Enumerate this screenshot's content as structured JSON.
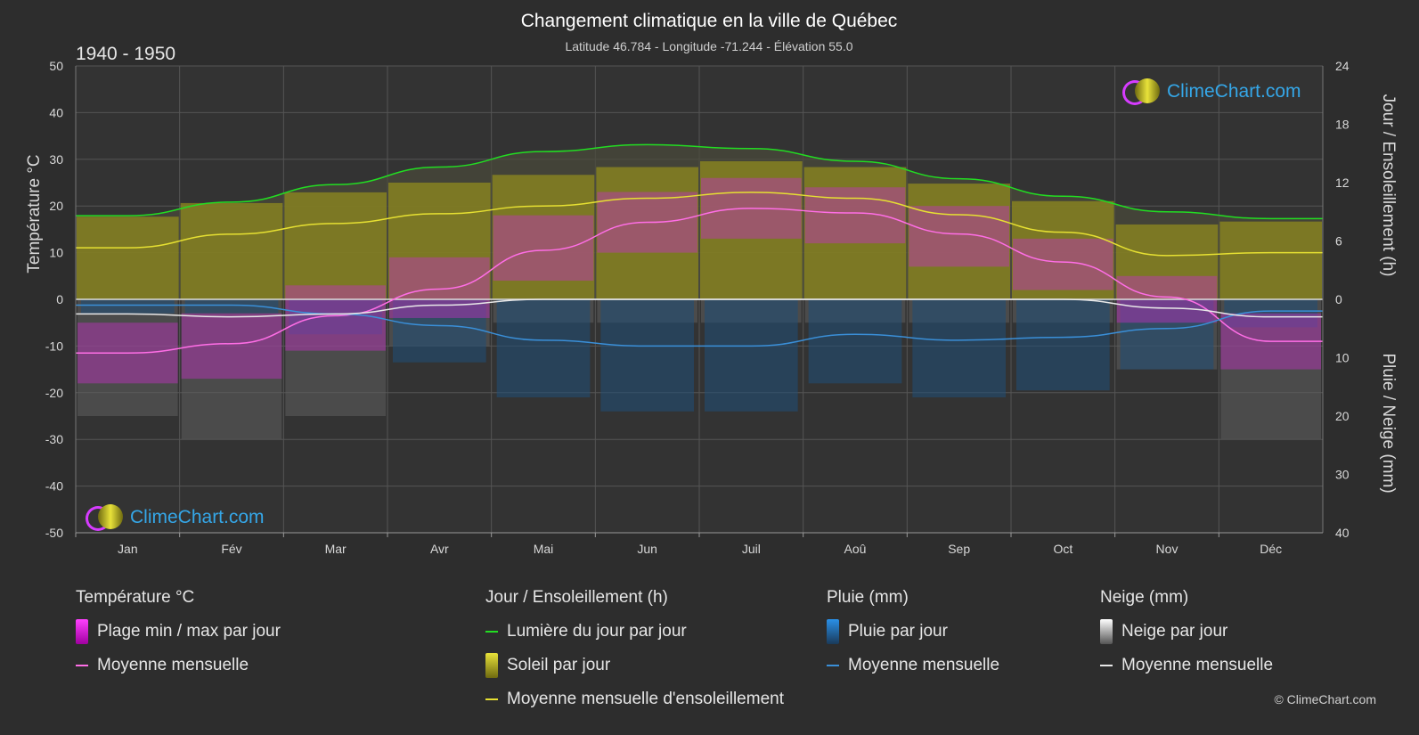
{
  "chart_data": {
    "type": "area",
    "title": "Changement climatique en la ville de Québec",
    "subtitle": "Latitude 46.784 - Longitude -71.244 - Élévation 55.0",
    "period": "1940 - 1950",
    "months": [
      "Jan",
      "Fév",
      "Mar",
      "Avr",
      "Mai",
      "Jun",
      "Juil",
      "Aoû",
      "Sep",
      "Oct",
      "Nov",
      "Déc"
    ],
    "y_left": {
      "label": "Température °C",
      "range": [
        -50,
        50
      ],
      "ticks": [
        50,
        40,
        30,
        20,
        10,
        0,
        -10,
        -20,
        -30,
        -40,
        -50
      ]
    },
    "y_right_top": {
      "label": "Jour / Ensoleillement (h)",
      "range": [
        0,
        24
      ],
      "ticks": [
        24,
        18,
        12,
        6,
        0
      ]
    },
    "y_right_bottom": {
      "label": "Pluie / Neige (mm)",
      "range": [
        0,
        40
      ],
      "ticks": [
        10,
        20,
        30,
        40
      ]
    },
    "grid": true,
    "series": [
      {
        "name": "Lumière du jour par jour",
        "unit": "h",
        "color": "#22dd22",
        "values": [
          8.6,
          10.0,
          11.8,
          13.6,
          15.2,
          15.9,
          15.5,
          14.2,
          12.4,
          10.6,
          9.0,
          8.3
        ]
      },
      {
        "name": "Moyenne mensuelle d'ensoleillement",
        "unit": "h",
        "color": "#e6e032",
        "values": [
          5.3,
          6.7,
          7.8,
          8.8,
          9.6,
          10.4,
          11.0,
          10.4,
          8.7,
          6.9,
          4.5,
          4.8
        ]
      },
      {
        "name": "Moyenne mensuelle",
        "group": "Température °C",
        "unit": "°C",
        "color": "#ff6ee6",
        "values": [
          -11.5,
          -9.5,
          -3.5,
          2.2,
          10.5,
          16.5,
          19.5,
          18.5,
          14.0,
          8.0,
          0.5,
          -9.0
        ]
      },
      {
        "name": "Moyenne mensuelle",
        "group": "Pluie (mm)",
        "unit": "mm",
        "color": "#3a8fd8",
        "values": [
          1.0,
          1.0,
          2.5,
          4.5,
          7.0,
          8.0,
          8.0,
          6.0,
          7.0,
          6.5,
          5.0,
          2.0
        ]
      },
      {
        "name": "Moyenne mensuelle",
        "group": "Neige (mm)",
        "unit": "mm",
        "color": "#e8e8e8",
        "values": [
          2.5,
          3.0,
          2.5,
          1.0,
          0.0,
          0.0,
          0.0,
          0.0,
          0.0,
          0.0,
          1.5,
          3.0
        ]
      },
      {
        "name": "Plage min / max par jour",
        "unit": "°C",
        "color": "#e020e0",
        "min": [
          -18,
          -17,
          -11,
          -4,
          4,
          10,
          13,
          12,
          7,
          2,
          -5,
          -15
        ],
        "max": [
          -5,
          -3,
          3,
          9,
          18,
          23,
          26,
          24,
          20,
          13,
          5,
          -3
        ]
      }
    ]
  },
  "legend": {
    "temperature": {
      "title": "Température °C",
      "range_label": "Plage min / max par jour",
      "mean_label": "Moyenne mensuelle"
    },
    "sun": {
      "title": "Jour / Ensoleillement (h)",
      "daylight_label": "Lumière du jour par jour",
      "sun_label": "Soleil par jour",
      "sun_mean_label": "Moyenne mensuelle d'ensoleillement"
    },
    "rain": {
      "title": "Pluie (mm)",
      "rain_label": "Pluie par jour",
      "mean_label": "Moyenne mensuelle"
    },
    "snow": {
      "title": "Neige (mm)",
      "snow_label": "Neige par jour",
      "mean_label": "Moyenne mensuelle"
    }
  },
  "brand": {
    "logo_text": "ClimeChart.com",
    "copyright": "© ClimeChart.com"
  }
}
